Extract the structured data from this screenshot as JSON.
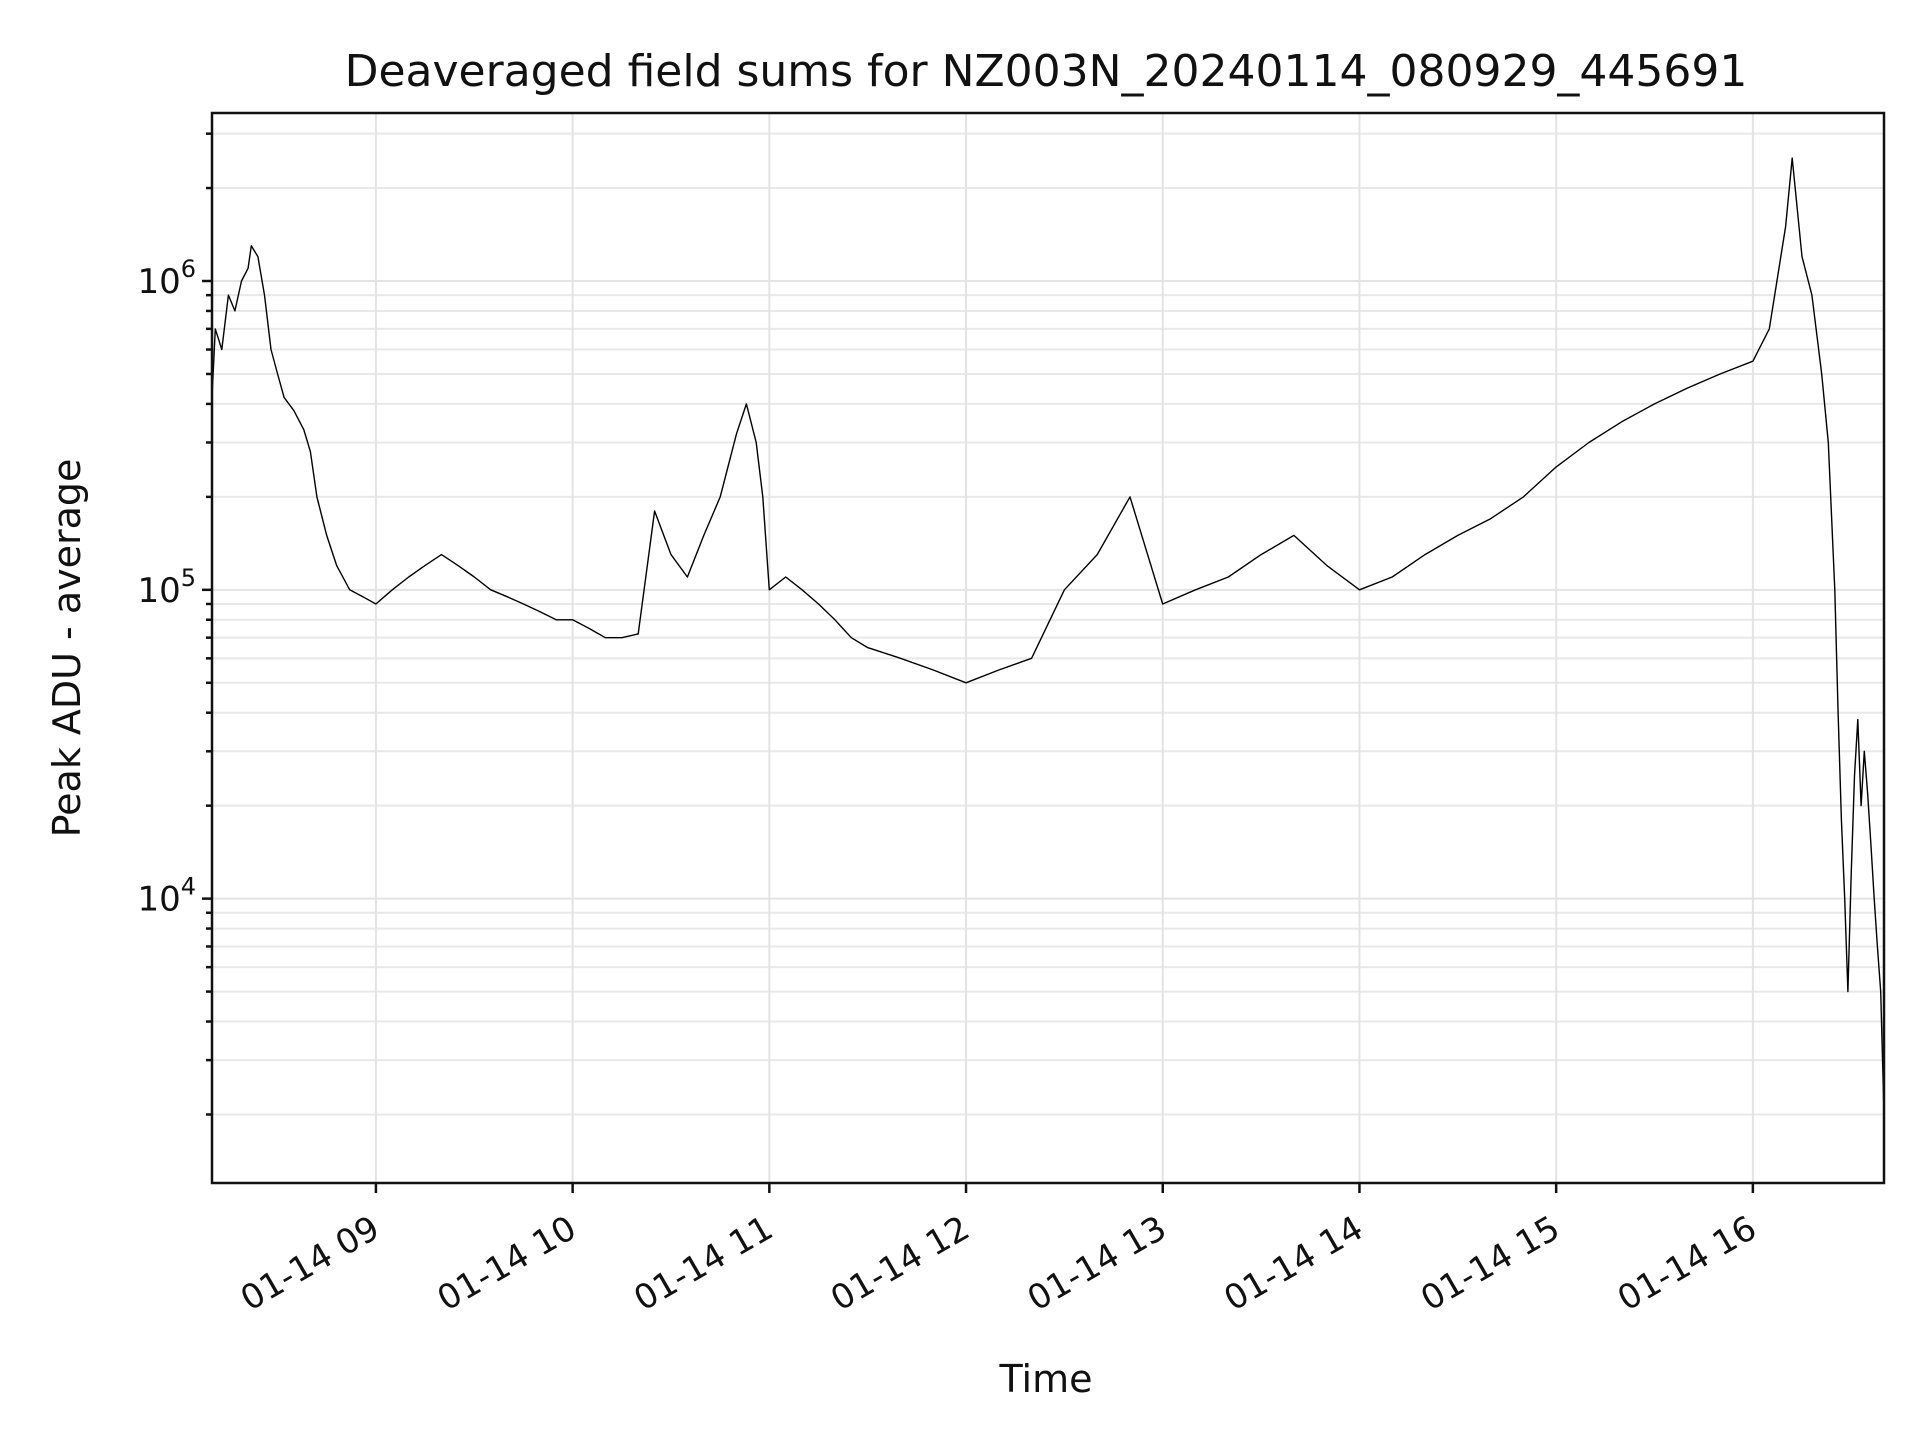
{
  "chart_data": {
    "type": "line",
    "title": "Deaveraged field sums for NZ003N_20240114_080929_445691",
    "xlabel": "Time",
    "ylabel": "Peak ADU - average",
    "x_range": [
      "2024-01-14T08:10",
      "2024-01-14T16:40"
    ],
    "y_scale": "log",
    "ylim": [
      1200,
      3500000
    ],
    "grid": true,
    "x_ticks": [
      {
        "value": "2024-01-14T09:00",
        "label": "01-14 09"
      },
      {
        "value": "2024-01-14T10:00",
        "label": "01-14 10"
      },
      {
        "value": "2024-01-14T11:00",
        "label": "01-14 11"
      },
      {
        "value": "2024-01-14T12:00",
        "label": "01-14 12"
      },
      {
        "value": "2024-01-14T13:00",
        "label": "01-14 13"
      },
      {
        "value": "2024-01-14T14:00",
        "label": "01-14 14"
      },
      {
        "value": "2024-01-14T15:00",
        "label": "01-14 15"
      },
      {
        "value": "2024-01-14T16:00",
        "label": "01-14 16"
      }
    ],
    "y_ticks": [
      {
        "value": 10000,
        "base": "10",
        "exp": "4"
      },
      {
        "value": 100000,
        "base": "10",
        "exp": "5"
      },
      {
        "value": 1000000,
        "base": "10",
        "exp": "6"
      }
    ],
    "line_color": "#000000",
    "series": [
      {
        "points": [
          [
            "2024-01-14T08:10",
            420000
          ],
          [
            "2024-01-14T08:11",
            700000
          ],
          [
            "2024-01-14T08:13",
            600000
          ],
          [
            "2024-01-14T08:15",
            900000
          ],
          [
            "2024-01-14T08:17",
            800000
          ],
          [
            "2024-01-14T08:19",
            1000000
          ],
          [
            "2024-01-14T08:21",
            1100000
          ],
          [
            "2024-01-14T08:22",
            1300000
          ],
          [
            "2024-01-14T08:24",
            1200000
          ],
          [
            "2024-01-14T08:26",
            900000
          ],
          [
            "2024-01-14T08:28",
            600000
          ],
          [
            "2024-01-14T08:30",
            500000
          ],
          [
            "2024-01-14T08:32",
            420000
          ],
          [
            "2024-01-14T08:35",
            380000
          ],
          [
            "2024-01-14T08:38",
            330000
          ],
          [
            "2024-01-14T08:40",
            280000
          ],
          [
            "2024-01-14T08:42",
            200000
          ],
          [
            "2024-01-14T08:45",
            150000
          ],
          [
            "2024-01-14T08:48",
            120000
          ],
          [
            "2024-01-14T08:52",
            100000
          ],
          [
            "2024-01-14T08:56",
            95000
          ],
          [
            "2024-01-14T09:00",
            90000
          ],
          [
            "2024-01-14T09:05",
            100000
          ],
          [
            "2024-01-14T09:10",
            110000
          ],
          [
            "2024-01-14T09:15",
            120000
          ],
          [
            "2024-01-14T09:20",
            130000
          ],
          [
            "2024-01-14T09:25",
            120000
          ],
          [
            "2024-01-14T09:30",
            110000
          ],
          [
            "2024-01-14T09:35",
            100000
          ],
          [
            "2024-01-14T09:40",
            95000
          ],
          [
            "2024-01-14T09:45",
            90000
          ],
          [
            "2024-01-14T09:50",
            85000
          ],
          [
            "2024-01-14T09:55",
            80000
          ],
          [
            "2024-01-14T10:00",
            80000
          ],
          [
            "2024-01-14T10:05",
            75000
          ],
          [
            "2024-01-14T10:10",
            70000
          ],
          [
            "2024-01-14T10:15",
            70000
          ],
          [
            "2024-01-14T10:20",
            72000
          ],
          [
            "2024-01-14T10:25",
            180000
          ],
          [
            "2024-01-14T10:30",
            130000
          ],
          [
            "2024-01-14T10:35",
            110000
          ],
          [
            "2024-01-14T10:40",
            150000
          ],
          [
            "2024-01-14T10:45",
            200000
          ],
          [
            "2024-01-14T10:50",
            320000
          ],
          [
            "2024-01-14T10:53",
            400000
          ],
          [
            "2024-01-14T10:56",
            300000
          ],
          [
            "2024-01-14T10:58",
            200000
          ],
          [
            "2024-01-14T11:00",
            100000
          ],
          [
            "2024-01-14T11:05",
            110000
          ],
          [
            "2024-01-14T11:10",
            100000
          ],
          [
            "2024-01-14T11:15",
            90000
          ],
          [
            "2024-01-14T11:20",
            80000
          ],
          [
            "2024-01-14T11:25",
            70000
          ],
          [
            "2024-01-14T11:30",
            65000
          ],
          [
            "2024-01-14T11:40",
            60000
          ],
          [
            "2024-01-14T11:50",
            55000
          ],
          [
            "2024-01-14T12:00",
            50000
          ],
          [
            "2024-01-14T12:10",
            55000
          ],
          [
            "2024-01-14T12:20",
            60000
          ],
          [
            "2024-01-14T12:30",
            100000
          ],
          [
            "2024-01-14T12:40",
            130000
          ],
          [
            "2024-01-14T12:50",
            200000
          ],
          [
            "2024-01-14T13:00",
            90000
          ],
          [
            "2024-01-14T13:10",
            100000
          ],
          [
            "2024-01-14T13:20",
            110000
          ],
          [
            "2024-01-14T13:30",
            130000
          ],
          [
            "2024-01-14T13:40",
            150000
          ],
          [
            "2024-01-14T13:50",
            120000
          ],
          [
            "2024-01-14T14:00",
            100000
          ],
          [
            "2024-01-14T14:10",
            110000
          ],
          [
            "2024-01-14T14:20",
            130000
          ],
          [
            "2024-01-14T14:30",
            150000
          ],
          [
            "2024-01-14T14:40",
            170000
          ],
          [
            "2024-01-14T14:50",
            200000
          ],
          [
            "2024-01-14T15:00",
            250000
          ],
          [
            "2024-01-14T15:10",
            300000
          ],
          [
            "2024-01-14T15:20",
            350000
          ],
          [
            "2024-01-14T15:30",
            400000
          ],
          [
            "2024-01-14T15:40",
            450000
          ],
          [
            "2024-01-14T15:50",
            500000
          ],
          [
            "2024-01-14T16:00",
            550000
          ],
          [
            "2024-01-14T16:05",
            700000
          ],
          [
            "2024-01-14T16:10",
            1500000
          ],
          [
            "2024-01-14T16:12",
            2500000
          ],
          [
            "2024-01-14T16:15",
            1200000
          ],
          [
            "2024-01-14T16:18",
            900000
          ],
          [
            "2024-01-14T16:21",
            500000
          ],
          [
            "2024-01-14T16:23",
            300000
          ],
          [
            "2024-01-14T16:25",
            100000
          ],
          [
            "2024-01-14T16:26",
            40000
          ],
          [
            "2024-01-14T16:27",
            18000
          ],
          [
            "2024-01-14T16:28",
            10000
          ],
          [
            "2024-01-14T16:29",
            5000
          ],
          [
            "2024-01-14T16:30",
            12000
          ],
          [
            "2024-01-14T16:31",
            25000
          ],
          [
            "2024-01-14T16:32",
            38000
          ],
          [
            "2024-01-14T16:33",
            20000
          ],
          [
            "2024-01-14T16:34",
            30000
          ],
          [
            "2024-01-14T16:35",
            22000
          ],
          [
            "2024-01-14T16:36",
            15000
          ],
          [
            "2024-01-14T16:37",
            10000
          ],
          [
            "2024-01-14T16:38",
            7000
          ],
          [
            "2024-01-14T16:39",
            5000
          ],
          [
            "2024-01-14T16:40",
            2000
          ]
        ]
      }
    ]
  }
}
